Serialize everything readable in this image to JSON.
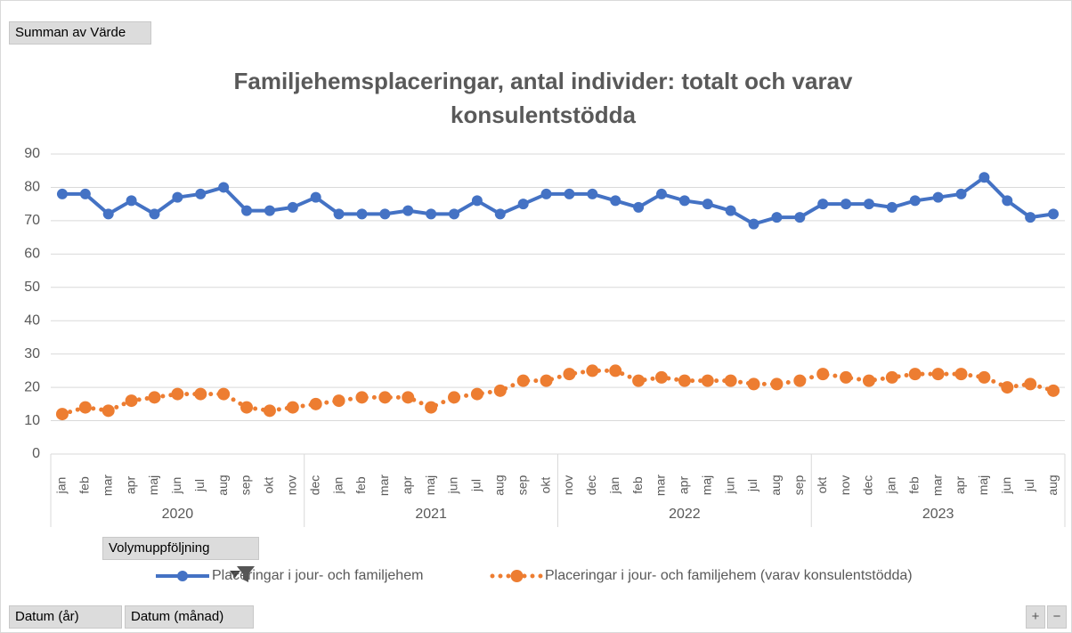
{
  "chart_data": {
    "type": "line",
    "title": "Familjehemsplaceringar, antal individer: totalt och varav konsulentstödda",
    "categories": [
      "jan",
      "feb",
      "mar",
      "apr",
      "maj",
      "jun",
      "jul",
      "aug",
      "sep",
      "okt",
      "nov",
      "dec",
      "jan",
      "feb",
      "mar",
      "apr",
      "maj",
      "jun",
      "jul",
      "aug",
      "sep",
      "okt",
      "nov",
      "dec",
      "jan",
      "feb",
      "mar",
      "apr",
      "maj",
      "jun",
      "jul",
      "aug",
      "sep",
      "okt",
      "nov",
      "dec",
      "jan",
      "feb",
      "mar",
      "apr",
      "maj",
      "jun",
      "jul",
      "aug"
    ],
    "year_groups": [
      "2020",
      "2021",
      "2022",
      "2023"
    ],
    "series": [
      {
        "name": "Placeringar i jour- och familjehem",
        "color": "#4472c4",
        "values": [
          78,
          78,
          72,
          76,
          72,
          77,
          78,
          80,
          73,
          73,
          74,
          77,
          72,
          72,
          72,
          73,
          72,
          72,
          76,
          72,
          75,
          78,
          78,
          78,
          76,
          74,
          78,
          76,
          75,
          73,
          69,
          71,
          71,
          75,
          75,
          75,
          74,
          76,
          77,
          78,
          83,
          76,
          71,
          72
        ]
      },
      {
        "name": "Placeringar i jour- och familjehem (varav konsulentstödda)",
        "color": "#ed7d31",
        "values": [
          12,
          14,
          13,
          16,
          17,
          18,
          18,
          18,
          14,
          13,
          14,
          15,
          16,
          17,
          17,
          17,
          14,
          17,
          18,
          19,
          22,
          22,
          24,
          25,
          25,
          22,
          23,
          22,
          22,
          22,
          21,
          21,
          22,
          24,
          23,
          22,
          23,
          24,
          24,
          24,
          23,
          20,
          21,
          19
        ]
      }
    ],
    "ylim": [
      0,
      90
    ],
    "yticks": [
      0,
      10,
      20,
      30,
      40,
      50,
      60,
      70,
      80,
      90
    ],
    "grid": true
  },
  "pivot_buttons": {
    "value_field": "Summan av Värde",
    "filter": "Volymuppföljning",
    "row_fields": [
      "Datum (år)",
      "Datum (månad)"
    ],
    "zoom": [
      "+",
      "−"
    ]
  }
}
